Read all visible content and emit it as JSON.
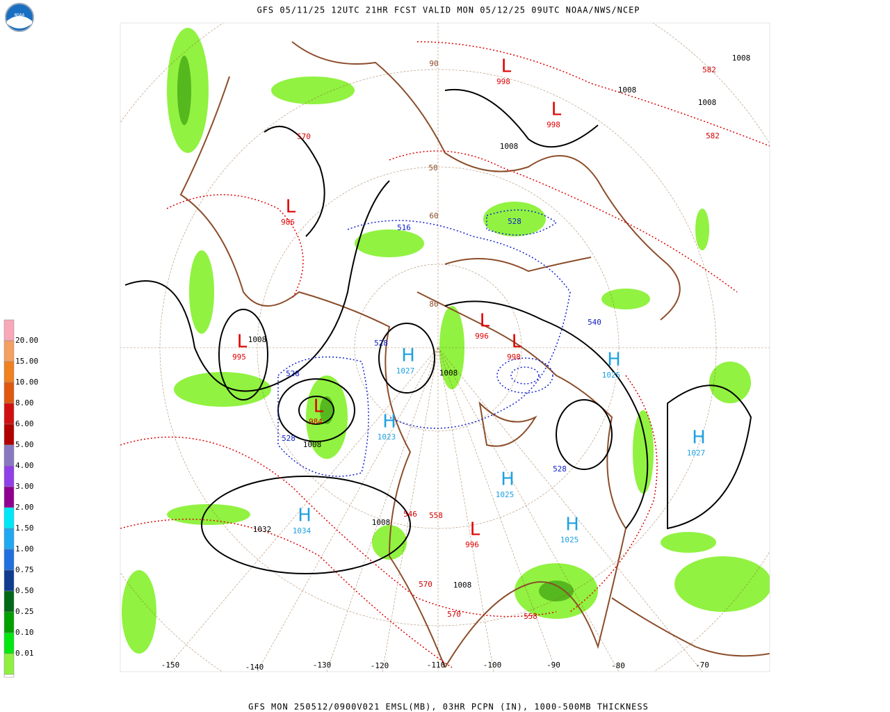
{
  "header": {
    "title": "GFS 05/11/25 12UTC 21HR FCST VALID MON 05/12/25 09UTC NOAA/NWS/NCEP",
    "logo": "NOAA"
  },
  "footer": {
    "caption": "GFS MON 250512/0900V021 EMSL(MB), 03HR PCPN (IN), 1000-500MB THICKNESS"
  },
  "legend": {
    "levels": [
      "20.00",
      "15.00",
      "10.00",
      "8.00",
      "6.00",
      "5.00",
      "4.00",
      "3.00",
      "2.00",
      "1.50",
      "1.00",
      "0.75",
      "0.50",
      "0.25",
      "0.10",
      "0.01"
    ]
  },
  "map": {
    "centers": [
      {
        "symbol": "L",
        "value": 995
      },
      {
        "symbol": "L",
        "value": 984
      },
      {
        "symbol": "H",
        "value": 1027
      },
      {
        "symbol": "H",
        "value": 1023
      },
      {
        "symbol": "H",
        "value": 1034
      },
      {
        "symbol": "L",
        "value": 996
      },
      {
        "symbol": "L",
        "value": 998
      },
      {
        "symbol": "H",
        "value": 1025
      },
      {
        "symbol": "H",
        "value": 1027
      },
      {
        "symbol": "H",
        "value": 1025
      },
      {
        "symbol": "L",
        "value": 996
      },
      {
        "symbol": "L",
        "value": 986
      },
      {
        "symbol": "H",
        "value": 1025
      },
      {
        "symbol": "L",
        "value": 998
      },
      {
        "symbol": "L",
        "value": 998
      }
    ],
    "isobar_labels": [
      1008,
      1008,
      1008,
      1008,
      1008,
      1008,
      1008,
      1032,
      1008,
      1008
    ],
    "thickness_labels": [
      582,
      582,
      570,
      570,
      558,
      558,
      546,
      570
    ],
    "cold_thickness_labels": [
      528,
      516,
      540,
      528,
      528,
      528,
      528
    ],
    "longitudes": [
      -150,
      -140,
      -130,
      -120,
      -110,
      -100,
      -90,
      -80,
      -70
    ],
    "latitudes": [
      90,
      80,
      60,
      50
    ]
  }
}
